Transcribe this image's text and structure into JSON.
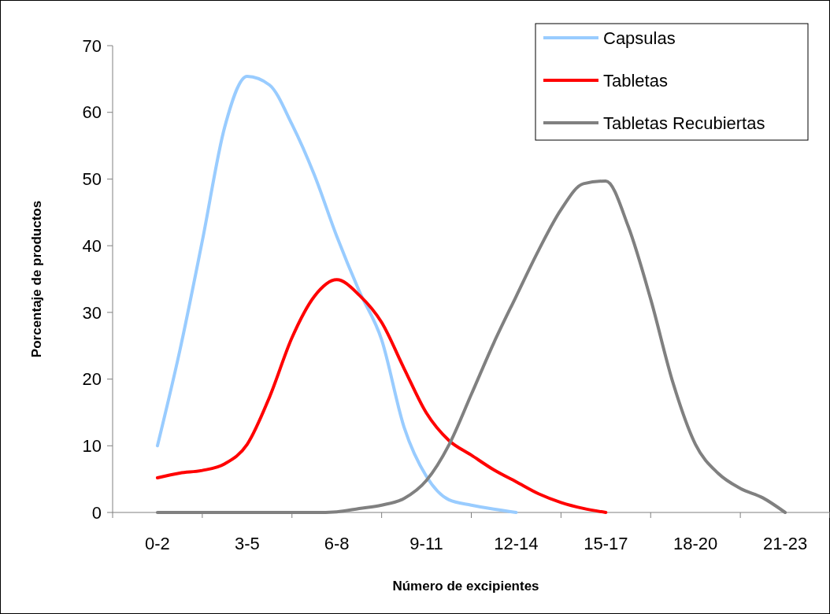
{
  "chart_data": {
    "type": "line",
    "xlabel": "Número de excipientes",
    "ylabel": "Porcentaje de productos",
    "categories": [
      "0-2",
      null,
      null,
      null,
      "3-5",
      null,
      null,
      null,
      "6-8",
      null,
      null,
      null,
      "9-11",
      null,
      null,
      null,
      "12-14",
      null,
      null,
      null,
      "15-17",
      null,
      null,
      null,
      "18-20",
      null,
      null,
      null,
      "21-23"
    ],
    "ylim": [
      0,
      70
    ],
    "yticks": [
      0,
      10,
      20,
      30,
      40,
      50,
      60,
      70
    ],
    "grid": false,
    "legend": "top right",
    "marker": "none",
    "line_style": "solid",
    "series": [
      {
        "name": "Capsulas",
        "color": "#99ccff",
        "values": [
          10,
          24.3,
          40.7,
          57.8,
          65.4,
          64.1,
          58.2,
          50.6,
          41.4,
          33.2,
          25.9,
          12.8,
          5.4,
          1.9,
          1.1,
          0.5,
          0,
          null,
          null,
          null,
          null,
          null,
          null,
          null,
          null,
          null,
          null,
          null,
          null
        ]
      },
      {
        "name": "Tabletas",
        "color": "#ff0000",
        "values": [
          5.2,
          5.9,
          6.3,
          7.3,
          10.2,
          17.3,
          26.2,
          32.4,
          34.9,
          32.6,
          28.5,
          21.6,
          14.9,
          10.8,
          8.6,
          6.4,
          4.6,
          2.8,
          1.5,
          0.6,
          0,
          null,
          null,
          null,
          null,
          null,
          null,
          null,
          null
        ]
      },
      {
        "name": "Tabletas Recubiertas",
        "color": "#808080",
        "values": [
          0,
          0,
          0,
          0,
          0,
          0,
          0,
          0,
          0.1,
          0.6,
          1.1,
          2.1,
          4.8,
          10.1,
          17.7,
          25.4,
          32.4,
          39.3,
          45.4,
          49.3,
          49.7,
          42.9,
          32.0,
          19.4,
          10.2,
          5.9,
          3.6,
          2.2,
          0
        ]
      }
    ]
  }
}
